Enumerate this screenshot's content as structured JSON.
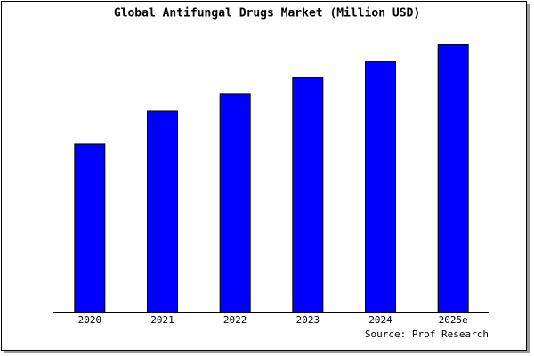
{
  "chart_data": {
    "type": "bar",
    "title": "Global Antifungal Drugs Market (Million USD)",
    "categories": [
      "2020",
      "2021",
      "2022",
      "2023",
      "2024",
      "2025e"
    ],
    "values": [
      62.4,
      74.6,
      80.9,
      87.1,
      93.1,
      99.3
    ],
    "color": "#0000ff",
    "ylim": [
      0,
      100
    ],
    "source": "Source: Prof Research"
  }
}
